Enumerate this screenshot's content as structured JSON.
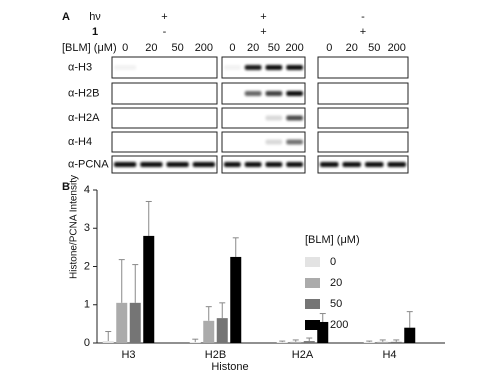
{
  "panel_a": {
    "label": "A",
    "treatments": [
      {
        "label": "hν",
        "marks": [
          "+",
          "+",
          "-"
        ]
      },
      {
        "label": "1",
        "marks": [
          "-",
          "+",
          "+"
        ]
      }
    ],
    "blm_label": "[BLM] (μM)",
    "concentrations": [
      "0",
      "20",
      "50",
      "200"
    ],
    "antibodies": [
      "α-H3",
      "α-H2B",
      "α-H2A",
      "α-H4",
      "α-PCNA"
    ]
  },
  "chart_data": {
    "type": "bar",
    "panel_label": "B",
    "y_label": "Histone/PCNA Intensity",
    "x_label": "Histone",
    "legend_title": "[BLM] (μM)",
    "categories": [
      "H3",
      "H2B",
      "H2A",
      "H4"
    ],
    "series": [
      {
        "name": "0",
        "color": "#e3e3e3",
        "values": [
          0.05,
          0.02,
          0.02,
          0.02
        ],
        "errors": [
          0.25,
          0.08,
          0.03,
          0.03
        ]
      },
      {
        "name": "20",
        "color": "#ababab",
        "values": [
          1.05,
          0.58,
          0.03,
          0.03
        ],
        "errors": [
          1.13,
          0.37,
          0.05,
          0.05
        ]
      },
      {
        "name": "50",
        "color": "#757575",
        "values": [
          1.05,
          0.65,
          0.05,
          0.03
        ],
        "errors": [
          1.0,
          0.4,
          0.08,
          0.05
        ]
      },
      {
        "name": "200",
        "color": "#000000",
        "values": [
          2.8,
          2.25,
          0.55,
          0.4
        ],
        "errors": [
          0.9,
          0.5,
          0.22,
          0.42
        ]
      }
    ],
    "ylim": [
      0,
      4
    ],
    "yticks": [
      0,
      1,
      2,
      3,
      4
    ],
    "legend": "upper right"
  }
}
